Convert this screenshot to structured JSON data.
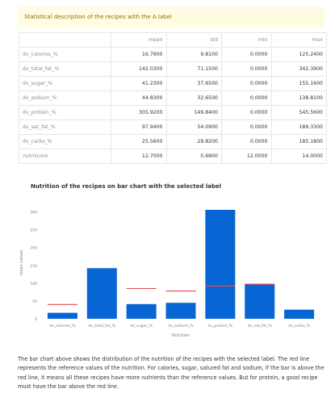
{
  "alert": {
    "text": "Statistical description of the recipes with the A label"
  },
  "stats_table": {
    "columns": [
      "mean",
      "std",
      "min",
      "max"
    ],
    "rows": [
      {
        "label": "dv_calories_%",
        "values": [
          "16.7900",
          "9.8100",
          "0.0000",
          "125.2400"
        ]
      },
      {
        "label": "dv_total_fat_%",
        "values": [
          "142.0300",
          "71.1500",
          "0.0000",
          "342.3900"
        ]
      },
      {
        "label": "dv_sugar_%",
        "values": [
          "41.2300",
          "37.6500",
          "0.0000",
          "155.1600"
        ]
      },
      {
        "label": "dv_sodium_%",
        "values": [
          "44.8300",
          "32.6500",
          "0.0000",
          "138.8100"
        ]
      },
      {
        "label": "dv_protein_%",
        "values": [
          "305.9200",
          "149.8400",
          "0.0000",
          "545.5600"
        ]
      },
      {
        "label": "dv_sat_fat_%",
        "values": [
          "97.9400",
          "54.0900",
          "0.0000",
          "189.3300"
        ]
      },
      {
        "label": "dv_carbs_%",
        "values": [
          "25.5600",
          "29.8200",
          "0.0000",
          "185.1800"
        ]
      },
      {
        "label": "nutriscore",
        "values": [
          "12.7000",
          "0.6800",
          "12.0000",
          "14.0000"
        ]
      }
    ]
  },
  "chart_data": {
    "type": "bar",
    "title": "Nutrition of the recipes on bar chart with the selected label",
    "xlabel": "Nutrition",
    "ylabel": "mean values",
    "categories": [
      "dv_calories_%",
      "dv_total_fat_%",
      "dv_sugar_%",
      "dv_sodium_%",
      "dv_protein_%",
      "dv_sat_fat_%",
      "dv_carbs_%"
    ],
    "values": [
      16.79,
      142.03,
      41.23,
      44.83,
      305.92,
      97.94,
      25.56
    ],
    "reference_values": [
      40,
      null,
      85,
      78,
      92,
      97,
      null
    ],
    "yticks": [
      0,
      50,
      100,
      150,
      200,
      250,
      300
    ],
    "ylim": [
      0,
      315
    ],
    "grid": false,
    "bar_color": "#0866d4",
    "reference_color": "#e8484f"
  },
  "description": "The bar chart above shows the distribution of the nutrition of the recipes with the selected label. The red line represents the reference values of the nutrition. For calories, sugar, satured fat and sodium, if the bar is above the red line, it means all these recipes have more nutrients than the reference values. But for protein, a good recipe must have the bar above the red line."
}
